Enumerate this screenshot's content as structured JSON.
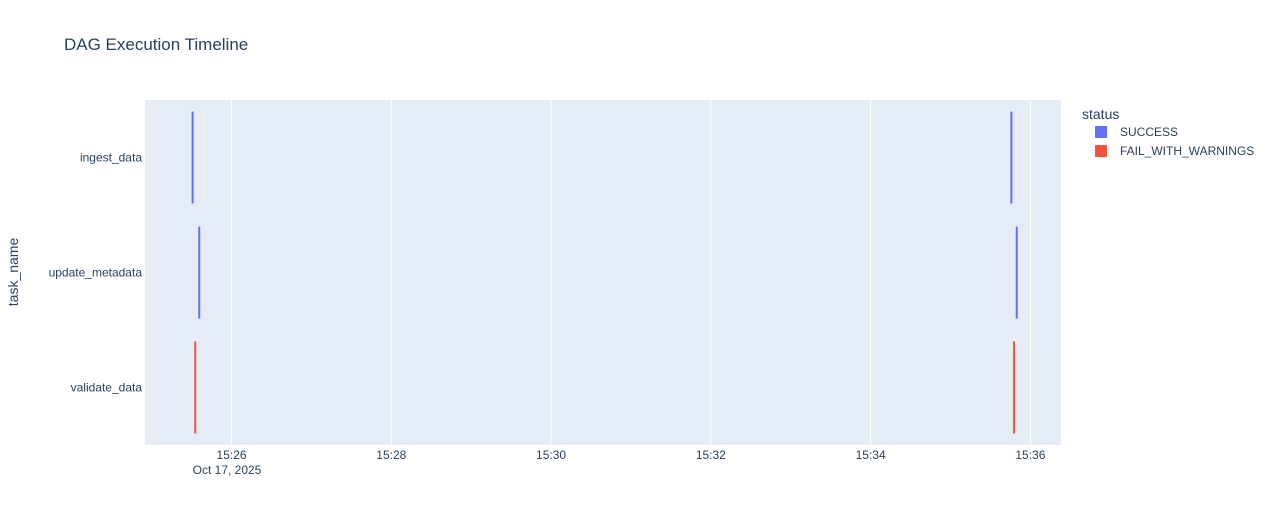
{
  "chart_data": {
    "type": "timeline",
    "title": "DAG Execution Timeline",
    "xlabel": "",
    "ylabel": "task_name",
    "x_ticks": [
      "15:26",
      "15:28",
      "15:30",
      "15:32",
      "15:34",
      "15:36"
    ],
    "x_date_label": "Oct 17, 2025",
    "xlim": [
      "15:24:55",
      "15:36:23"
    ],
    "categories": [
      "ingest_data",
      "update_metadata",
      "validate_data"
    ],
    "legend": {
      "title": "status",
      "placement": "top-right",
      "entries": [
        {
          "name": "SUCCESS",
          "color": "#636efa"
        },
        {
          "name": "FAIL_WITH_WARNINGS",
          "color": "#ef553b"
        }
      ]
    },
    "bars": [
      {
        "task": "ingest_data",
        "start": "15:25:30",
        "end": "15:25:31",
        "status": "SUCCESS"
      },
      {
        "task": "update_metadata",
        "start": "15:25:35",
        "end": "15:25:36",
        "status": "SUCCESS"
      },
      {
        "task": "validate_data",
        "start": "15:25:32",
        "end": "15:25:33",
        "status": "FAIL_WITH_WARNINGS"
      },
      {
        "task": "ingest_data",
        "start": "15:35:45",
        "end": "15:35:46",
        "status": "SUCCESS"
      },
      {
        "task": "update_metadata",
        "start": "15:35:49",
        "end": "15:35:50",
        "status": "SUCCESS"
      },
      {
        "task": "validate_data",
        "start": "15:35:47",
        "end": "15:35:48",
        "status": "FAIL_WITH_WARNINGS"
      }
    ],
    "grid": true,
    "plot_background": "#e5ecf6"
  }
}
